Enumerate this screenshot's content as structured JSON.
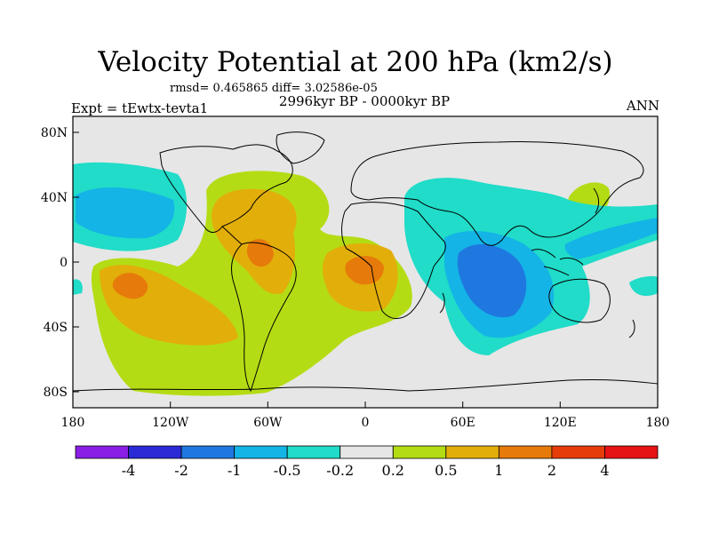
{
  "title": "Velocity Potential at 200 hPa (km2/s)",
  "stats": "rmsd= 0.465865 diff= 3.02586e-05",
  "period": "2996kyr BP - 0000kyr BP",
  "experiment": "Expt = tEwtx-tevta1",
  "season": "ANN",
  "map": {
    "lat_ticks": [
      "80N",
      "40N",
      "0",
      "40S",
      "80S"
    ],
    "lon_ticks": [
      "180",
      "120W",
      "60W",
      "0",
      "60E",
      "120E",
      "180"
    ],
    "ocean_color": "#e6e6e6"
  },
  "colorbar": {
    "colors": [
      "#8a1ee6",
      "#2a2ad6",
      "#1f78e0",
      "#14b4e6",
      "#20dcc8",
      "#e6e6e6",
      "#b4dc14",
      "#e2ae0a",
      "#e67a0a",
      "#e63c0a",
      "#e61414"
    ],
    "labels": [
      "-4",
      "-2",
      "-1",
      "-0.5",
      "-0.2",
      "0.2",
      "0.5",
      "1",
      "2",
      "4"
    ]
  }
}
